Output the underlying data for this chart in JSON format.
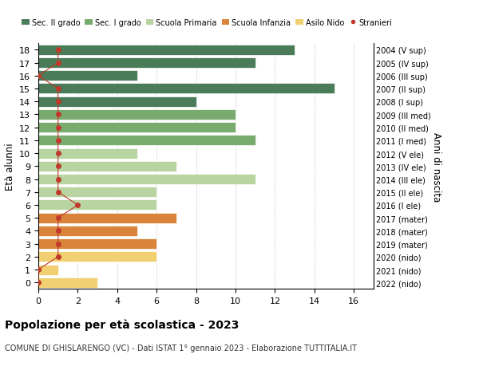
{
  "ages": [
    18,
    17,
    16,
    15,
    14,
    13,
    12,
    11,
    10,
    9,
    8,
    7,
    6,
    5,
    4,
    3,
    2,
    1,
    0
  ],
  "right_labels": [
    "2004 (V sup)",
    "2005 (IV sup)",
    "2006 (III sup)",
    "2007 (II sup)",
    "2008 (I sup)",
    "2009 (III med)",
    "2010 (II med)",
    "2011 (I med)",
    "2012 (V ele)",
    "2013 (IV ele)",
    "2014 (III ele)",
    "2015 (II ele)",
    "2016 (I ele)",
    "2017 (mater)",
    "2018 (mater)",
    "2019 (mater)",
    "2020 (nido)",
    "2021 (nido)",
    "2022 (nido)"
  ],
  "bar_values": [
    13,
    11,
    5,
    15,
    8,
    10,
    10,
    11,
    5,
    7,
    11,
    6,
    6,
    7,
    5,
    6,
    6,
    1,
    3
  ],
  "bar_colors": [
    "#4a7c59",
    "#4a7c59",
    "#4a7c59",
    "#4a7c59",
    "#4a7c59",
    "#7aab6e",
    "#7aab6e",
    "#7aab6e",
    "#b8d4a0",
    "#b8d4a0",
    "#b8d4a0",
    "#b8d4a0",
    "#b8d4a0",
    "#d9843a",
    "#d9843a",
    "#d9843a",
    "#f0d070",
    "#f0d070",
    "#f0d070"
  ],
  "stranieri_values": [
    1,
    1,
    0,
    1,
    1,
    1,
    1,
    1,
    1,
    1,
    1,
    1,
    2,
    1,
    1,
    1,
    1,
    0,
    0
  ],
  "stranieri_ages": [
    18,
    17,
    16,
    15,
    14,
    13,
    12,
    11,
    10,
    9,
    8,
    7,
    6,
    5,
    4,
    3,
    2,
    1,
    0
  ],
  "legend_labels": [
    "Sec. II grado",
    "Sec. I grado",
    "Scuola Primaria",
    "Scuola Infanzia",
    "Asilo Nido",
    "Stranieri"
  ],
  "legend_colors": [
    "#4a7c59",
    "#7aab6e",
    "#b8d4a0",
    "#d9843a",
    "#f0d070",
    "#c0392b"
  ],
  "stranieri_color": "#c0392b",
  "title": "Popolazione per età scolastica - 2023",
  "subtitle": "COMUNE DI GHISLARENGO (VC) - Dati ISTAT 1° gennaio 2023 - Elaborazione TUTTITALIA.IT",
  "ylabel": "Età alunni",
  "ylabel_right": "Anni di nascita",
  "xlim": [
    0,
    17
  ],
  "xticks": [
    0,
    2,
    4,
    6,
    8,
    10,
    12,
    14,
    16
  ],
  "bg_color": "#ffffff",
  "grid_color": "#cccccc"
}
